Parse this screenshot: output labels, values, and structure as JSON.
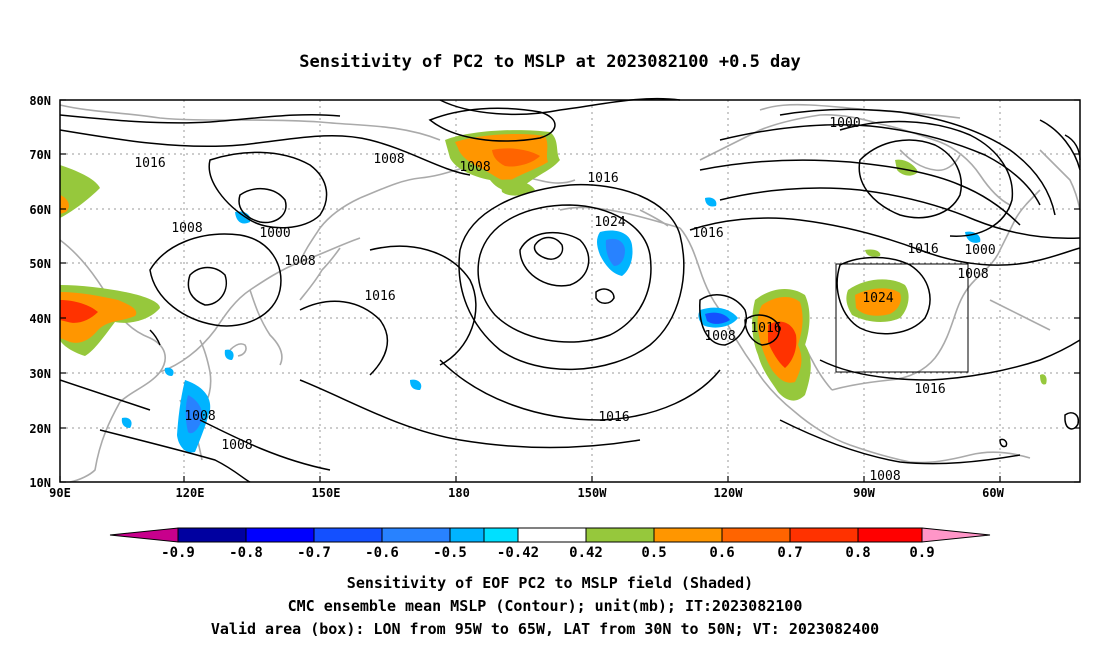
{
  "title": "Sensitivity of PC2 to MSLP at 2023082100 +0.5 day",
  "lat_labels": [
    "80N",
    "70N",
    "60N",
    "50N",
    "40N",
    "30N",
    "20N",
    "10N"
  ],
  "lon_labels": [
    "90E",
    "120E",
    "150E",
    "180",
    "150W",
    "120W",
    "90W",
    "60W"
  ],
  "contour_labels": [
    "1016",
    "1008",
    "1008",
    "1000",
    "1008",
    "1008",
    "1008",
    "1016",
    "1016",
    "1024",
    "1016",
    "1000",
    "1016",
    "1000",
    "1008",
    "1024",
    "1008",
    "1016",
    "1016",
    "1016",
    "1008",
    "1008",
    "1008"
  ],
  "colorbar": {
    "labels": [
      "-0.9",
      "-0.8",
      "-0.7",
      "-0.6",
      "-0.5",
      "-0.42",
      "0.42",
      "0.5",
      "0.6",
      "0.7",
      "0.8",
      "0.9"
    ],
    "colors": [
      "#c8008c",
      "#0000a0",
      "#0000ff",
      "#1450ff",
      "#2882ff",
      "#00b4ff",
      "#00e0ff",
      "#ffffff",
      "#96c83c",
      "#ff9600",
      "#ff6400",
      "#ff3200",
      "#ff0000",
      "#ff96c8"
    ]
  },
  "valid_box": {
    "lon_from": "95W",
    "lon_to": "65W",
    "lat_from": "30N",
    "lat_to": "50N"
  },
  "captions": [
    "Sensitivity of EOF PC2 to MSLP field (Shaded)",
    "CMC ensemble mean MSLP (Contour); unit(mb); IT:2023082100",
    "Valid area (box): LON from 95W to 65W, LAT from 30N to 50N; VT: 2023082400"
  ]
}
